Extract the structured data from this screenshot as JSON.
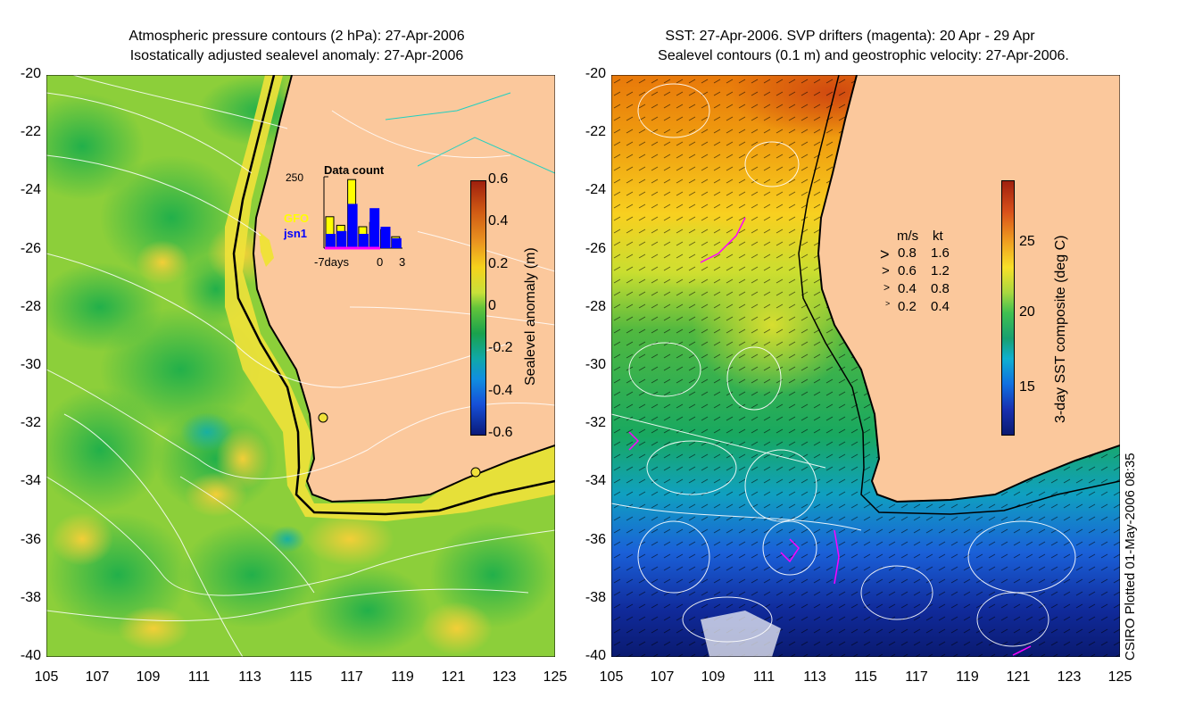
{
  "left_panel": {
    "title_line1": "Atmospheric pressure contours (2 hPa): 27-Apr-2006",
    "title_line2": "Isostatically adjusted sealevel anomaly: 27-Apr-2006",
    "colorbar": {
      "label": "Sealevel anomaly (m)",
      "ticks": [
        "0.6",
        "0.4",
        "0.2",
        "0",
        "-0.2",
        "-0.4",
        "-0.6"
      ]
    },
    "inset": {
      "title": "Data count",
      "ymax_label": "250",
      "legend_gfo": "GFO",
      "legend_jsn1": "jsn1",
      "xaxis_left": "-7days",
      "xaxis_mid": "0",
      "xaxis_right": "3",
      "gfo_counts": [
        110,
        80,
        240,
        75,
        90,
        65,
        40
      ],
      "jsn1_counts": [
        50,
        60,
        155,
        50,
        140,
        75,
        35
      ]
    },
    "colors": {
      "gfo": "#ffff00",
      "jsn1": "#0000ff"
    }
  },
  "right_panel": {
    "title_line1": "SST: 27-Apr-2006. SVP drifters (magenta): 20 Apr - 29 Apr",
    "title_line2": "Sealevel contours (0.1 m) and geostrophic velocity: 27-Apr-2006.",
    "colorbar": {
      "label": "3-day SST composite (deg C)",
      "ticks": [
        "25",
        "20",
        "15"
      ]
    },
    "velocity_legend": {
      "header_ms": "m/s",
      "header_kt": "kt",
      "rows": [
        {
          "ms": "0.8",
          "kt": "1.6"
        },
        {
          "ms": "0.6",
          "kt": "1.2"
        },
        {
          "ms": "0.4",
          "kt": "0.8"
        },
        {
          "ms": "0.2",
          "kt": "0.4"
        }
      ]
    },
    "colors": {
      "drifter": "#ff00ff"
    }
  },
  "axes": {
    "lat_labels": [
      "-20",
      "-22",
      "-24",
      "-26",
      "-28",
      "-30",
      "-32",
      "-34",
      "-36",
      "-38",
      "-40"
    ],
    "lon_labels": [
      "105",
      "107",
      "109",
      "111",
      "113",
      "115",
      "117",
      "119",
      "121",
      "123",
      "125"
    ]
  },
  "credit": "CSIRO Plotted 01-May-2006 08:35",
  "colors": {
    "land": "#fbc89c"
  }
}
